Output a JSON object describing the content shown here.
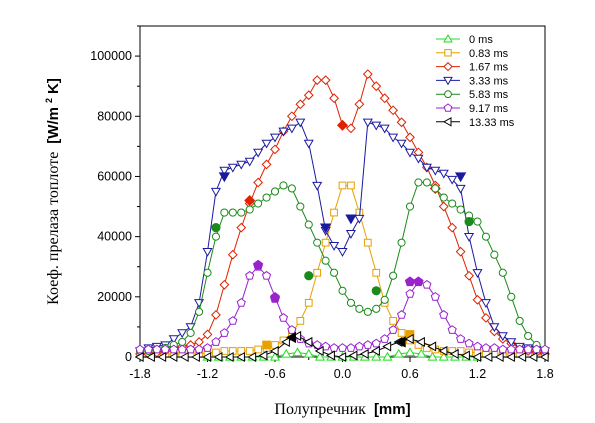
{
  "chart_data": {
    "type": "line",
    "xlabel": {
      "text": "Полупречник",
      "unit": "[mm]"
    },
    "ylabel": {
      "text": "Коеф. прелаза топлоте",
      "unit_prefix": "[W/m",
      "unit_sup": "2",
      "unit_suffix": "K]"
    },
    "xlim": [
      -1.8,
      1.8
    ],
    "ylim": [
      0,
      110000
    ],
    "x_ticks": [
      -1.8,
      -1.2,
      -0.6,
      0.0,
      0.6,
      1.2,
      1.8
    ],
    "x_tick_labels": [
      "-1.8",
      "-1.2",
      "-0.6",
      "0.0",
      "0.6",
      "1.2",
      "1.8"
    ],
    "y_ticks": [
      0,
      20000,
      40000,
      60000,
      80000,
      100000
    ],
    "y_tick_labels": [
      "0",
      "20000",
      "40000",
      "60000",
      "80000",
      "100000"
    ],
    "legend_position": "top-right",
    "grid": false,
    "series": [
      {
        "name": "0 ms",
        "color": "#22dd22",
        "marker": "triangle-up",
        "x": [
          -1.2,
          -1.1,
          -1.0,
          -0.9,
          -0.8,
          -0.7,
          -0.6,
          -0.5,
          -0.4,
          -0.3,
          -0.2,
          -0.1,
          0.0,
          0.1,
          0.2,
          0.3,
          0.4,
          0.5,
          0.6,
          0.7,
          0.8,
          0.9,
          1.0,
          1.1,
          1.2
        ],
        "y": [
          0,
          0,
          0,
          0,
          0,
          0,
          0,
          1000,
          1500,
          1000,
          0,
          0,
          0,
          0,
          0,
          0,
          0,
          1000,
          1500,
          1000,
          0,
          0,
          0,
          0,
          0
        ],
        "filled": []
      },
      {
        "name": "0.83 ms",
        "color": "#e6a000",
        "marker": "square",
        "x": [
          -1.8,
          -1.725,
          -1.65,
          -1.575,
          -1.5,
          -1.425,
          -1.35,
          -1.275,
          -1.2,
          -1.125,
          -1.05,
          -0.975,
          -0.9,
          -0.825,
          -0.75,
          -0.675,
          -0.6,
          -0.525,
          -0.45,
          -0.375,
          -0.3,
          -0.225,
          -0.15,
          -0.075,
          0.0,
          0.075,
          0.15,
          0.225,
          0.3,
          0.375,
          0.45,
          0.525,
          0.6,
          0.675,
          0.75,
          0.825,
          0.9,
          0.975,
          1.05,
          1.125,
          1.2,
          1.275,
          1.35,
          1.425,
          1.5,
          1.575,
          1.65,
          1.725,
          1.8
        ],
        "y": [
          1000,
          1000,
          1000,
          1000,
          1000,
          1000,
          1000,
          1000,
          1500,
          1500,
          2000,
          2000,
          2000,
          2000,
          2500,
          3000,
          4000,
          5500,
          8000,
          12000,
          18000,
          28000,
          38000,
          48000,
          57000,
          57000,
          48000,
          38000,
          28000,
          18000,
          12000,
          8000,
          5500,
          4000,
          3000,
          2500,
          2000,
          2000,
          2000,
          1500,
          1500,
          1000,
          1000,
          1000,
          1000,
          1000,
          1000,
          1000,
          1000
        ],
        "filled": [
          [
            -0.675,
            4000
          ],
          [
            0.6,
            7500
          ]
        ]
      },
      {
        "name": "1.67 ms",
        "color": "#dd2200",
        "marker": "diamond",
        "x": [
          -1.8,
          -1.725,
          -1.65,
          -1.575,
          -1.5,
          -1.425,
          -1.35,
          -1.275,
          -1.2,
          -1.125,
          -1.05,
          -0.975,
          -0.9,
          -0.825,
          -0.75,
          -0.675,
          -0.6,
          -0.525,
          -0.45,
          -0.375,
          -0.3,
          -0.225,
          -0.15,
          -0.075,
          0.0,
          0.075,
          0.15,
          0.225,
          0.3,
          0.375,
          0.45,
          0.525,
          0.6,
          0.675,
          0.75,
          0.825,
          0.9,
          0.975,
          1.05,
          1.125,
          1.2,
          1.275,
          1.35,
          1.425,
          1.5,
          1.575,
          1.65,
          1.725,
          1.8
        ],
        "y": [
          1000,
          1000,
          1500,
          2000,
          3000,
          3500,
          4000,
          5000,
          7500,
          14000,
          24000,
          34000,
          43000,
          51000,
          58000,
          64000,
          69000,
          75000,
          80000,
          84000,
          87000,
          92000,
          92000,
          86000,
          77000,
          76000,
          84000,
          94000,
          90000,
          86000,
          82000,
          78000,
          73000,
          68000,
          63000,
          57000,
          50000,
          43000,
          35000,
          27000,
          19000,
          13000,
          8500,
          6000,
          4500,
          3000,
          2000,
          1500,
          1000
        ],
        "filled": [
          [
            -0.825,
            52000
          ],
          [
            0.0,
            77000
          ],
          [
            0.825,
            56000
          ]
        ]
      },
      {
        "name": "3.33 ms",
        "color": "#1a1aa0",
        "marker": "triangle-down",
        "x": [
          -1.8,
          -1.725,
          -1.65,
          -1.575,
          -1.5,
          -1.425,
          -1.35,
          -1.275,
          -1.2,
          -1.125,
          -1.05,
          -0.975,
          -0.9,
          -0.825,
          -0.75,
          -0.675,
          -0.6,
          -0.525,
          -0.45,
          -0.375,
          -0.3,
          -0.225,
          -0.15,
          -0.075,
          0.0,
          0.075,
          0.15,
          0.225,
          0.3,
          0.375,
          0.45,
          0.525,
          0.6,
          0.675,
          0.75,
          0.825,
          0.9,
          0.975,
          1.05,
          1.125,
          1.2,
          1.275,
          1.35,
          1.425,
          1.5,
          1.575,
          1.65,
          1.725,
          1.8
        ],
        "y": [
          2000,
          3000,
          3500,
          4000,
          6000,
          8000,
          10000,
          18000,
          35000,
          55000,
          62000,
          63000,
          64000,
          65000,
          68000,
          71000,
          73000,
          75000,
          76000,
          78000,
          71000,
          57000,
          42000,
          37000,
          35000,
          41000,
          46000,
          78000,
          77000,
          76000,
          73000,
          71000,
          68000,
          66000,
          63000,
          62000,
          61000,
          59000,
          56000,
          40000,
          28000,
          18000,
          10000,
          7000,
          5000,
          3500,
          3000,
          2500,
          2000
        ],
        "filled": [
          [
            -1.05,
            60000
          ],
          [
            -0.15,
            43000
          ],
          [
            0.075,
            46000
          ],
          [
            1.05,
            60000
          ]
        ]
      },
      {
        "name": "5.83 ms",
        "color": "#1a8a1a",
        "marker": "circle",
        "x": [
          -1.8,
          -1.725,
          -1.65,
          -1.575,
          -1.5,
          -1.425,
          -1.35,
          -1.275,
          -1.2,
          -1.125,
          -1.05,
          -0.975,
          -0.9,
          -0.825,
          -0.75,
          -0.675,
          -0.6,
          -0.525,
          -0.45,
          -0.375,
          -0.3,
          -0.225,
          -0.15,
          -0.075,
          0.0,
          0.075,
          0.15,
          0.225,
          0.3,
          0.375,
          0.45,
          0.525,
          0.6,
          0.675,
          0.75,
          0.825,
          0.9,
          0.975,
          1.05,
          1.125,
          1.2,
          1.275,
          1.35,
          1.425,
          1.5,
          1.575,
          1.65,
          1.725,
          1.8
        ],
        "y": [
          2000,
          2000,
          2500,
          3000,
          4000,
          5000,
          8000,
          15000,
          28000,
          40000,
          48000,
          48000,
          48000,
          49000,
          51000,
          53000,
          55000,
          57000,
          56000,
          50000,
          44000,
          38000,
          32000,
          28000,
          22000,
          18000,
          16000,
          15000,
          16000,
          19000,
          27000,
          38000,
          50000,
          58000,
          58000,
          56000,
          53000,
          51000,
          49000,
          47000,
          45000,
          40000,
          34000,
          28000,
          20000,
          12000,
          7000,
          4000,
          2000
        ],
        "filled": [
          [
            -1.125,
            43000
          ],
          [
            -0.3,
            27000
          ],
          [
            0.3,
            22000
          ],
          [
            1.125,
            45000
          ]
        ]
      },
      {
        "name": "9.17 ms",
        "color": "#9922cc",
        "marker": "pentagon",
        "x": [
          -1.8,
          -1.725,
          -1.65,
          -1.575,
          -1.5,
          -1.425,
          -1.35,
          -1.275,
          -1.2,
          -1.125,
          -1.05,
          -0.975,
          -0.9,
          -0.825,
          -0.75,
          -0.675,
          -0.6,
          -0.525,
          -0.45,
          -0.375,
          -0.3,
          -0.225,
          -0.15,
          -0.075,
          0.0,
          0.075,
          0.15,
          0.225,
          0.3,
          0.375,
          0.45,
          0.525,
          0.6,
          0.675,
          0.75,
          0.825,
          0.9,
          0.975,
          1.05,
          1.125,
          1.2,
          1.275,
          1.35,
          1.425,
          1.5,
          1.575,
          1.65,
          1.725,
          1.8
        ],
        "y": [
          2500,
          2500,
          2500,
          2500,
          2500,
          2500,
          2500,
          2500,
          3000,
          5000,
          8000,
          12000,
          18000,
          27000,
          30000,
          27000,
          20000,
          13000,
          9000,
          6000,
          4500,
          4000,
          3500,
          3000,
          3000,
          3000,
          3500,
          4000,
          4500,
          6000,
          9000,
          14000,
          21000,
          25000,
          24000,
          20000,
          14000,
          9000,
          6000,
          4500,
          3500,
          3000,
          3000,
          2500,
          2500,
          2500,
          2500,
          2500,
          2500
        ],
        "filled": [
          [
            -0.75,
            30500
          ],
          [
            -0.6,
            19500
          ],
          [
            0.6,
            25000
          ],
          [
            0.675,
            25000
          ]
        ]
      },
      {
        "name": "13.33 ms",
        "color": "#000000",
        "marker": "triangle-left",
        "x": [
          -1.8,
          -1.7,
          -1.6,
          -1.5,
          -1.4,
          -1.3,
          -1.2,
          -1.1,
          -1.0,
          -0.9,
          -0.8,
          -0.7,
          -0.6,
          -0.5,
          -0.4,
          -0.3,
          -0.2,
          -0.1,
          0.0,
          0.1,
          0.2,
          0.3,
          0.4,
          0.5,
          0.6,
          0.7,
          0.8,
          0.9,
          1.0,
          1.1,
          1.2,
          1.3,
          1.4,
          1.5,
          1.6,
          1.7,
          1.8
        ],
        "y": [
          0,
          0,
          0,
          0,
          0,
          0,
          0,
          0,
          0,
          0,
          0,
          500,
          2000,
          5000,
          7000,
          5000,
          2000,
          500,
          0,
          500,
          1000,
          2000,
          3500,
          5000,
          6000,
          5000,
          3500,
          2000,
          1000,
          500,
          0,
          0,
          0,
          0,
          0,
          0,
          0
        ],
        "filled": [
          [
            -0.45,
            6500
          ],
          [
            0.525,
            5000
          ]
        ]
      }
    ]
  }
}
